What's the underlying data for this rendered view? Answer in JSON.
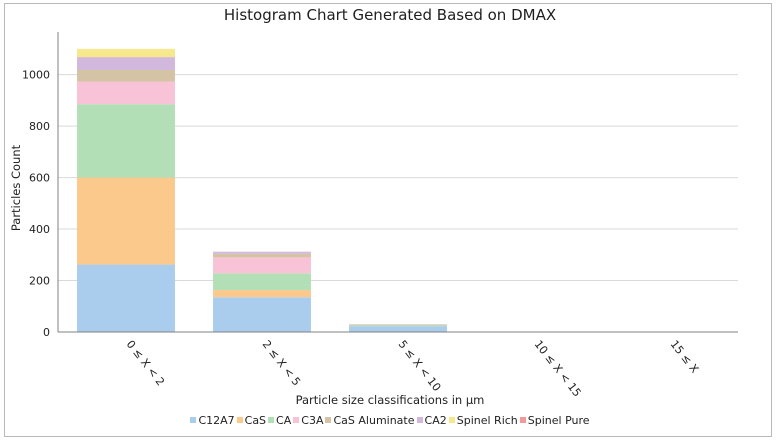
{
  "chart_data": {
    "type": "bar",
    "stacked": true,
    "title": "Histogram Chart Generated Based on DMAX",
    "xlabel": "Particle size classifications in μm",
    "ylabel": "Particles Count",
    "categories": [
      "0 ≤ X < 2",
      "2 ≤ X < 5",
      "5 ≤ X < 10",
      "10 ≤ X < 15",
      "15 ≤ X"
    ],
    "ylim": [
      0,
      1150
    ],
    "yticks": [
      0,
      200,
      400,
      600,
      800,
      1000
    ],
    "grid": true,
    "legend_position": "bottom",
    "series": [
      {
        "name": "C12A7",
        "color": "#aacdee",
        "values": [
          262,
          135,
          22,
          0,
          0
        ]
      },
      {
        "name": "CaS",
        "color": "#fbc98c",
        "values": [
          338,
          28,
          0,
          0,
          0
        ]
      },
      {
        "name": "CA",
        "color": "#b3dfb6",
        "values": [
          285,
          65,
          6,
          0,
          0
        ]
      },
      {
        "name": "C3A",
        "color": "#f8c3d6",
        "values": [
          88,
          62,
          3,
          0,
          0
        ]
      },
      {
        "name": "CaS Aluminate",
        "color": "#d4c3a5",
        "values": [
          45,
          14,
          0,
          0,
          0
        ]
      },
      {
        "name": "CA2",
        "color": "#d2b8dc",
        "values": [
          50,
          8,
          0,
          0,
          0
        ]
      },
      {
        "name": "Spinel Rich",
        "color": "#f8e88c",
        "values": [
          32,
          0,
          0,
          0,
          0
        ]
      },
      {
        "name": "Spinel Pure",
        "color": "#f29a9a",
        "values": [
          0,
          0,
          0,
          0,
          0
        ]
      }
    ]
  }
}
